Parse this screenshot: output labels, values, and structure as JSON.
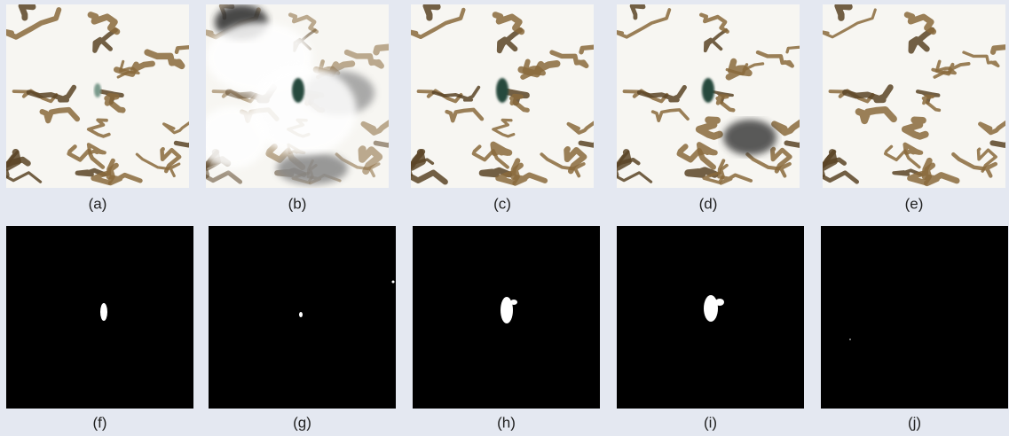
{
  "figure": {
    "panels": [
      {
        "label": "(a)"
      },
      {
        "label": "(b)"
      },
      {
        "label": "(c)"
      },
      {
        "label": "(d)"
      },
      {
        "label": "(e)"
      },
      {
        "label": "(f)"
      },
      {
        "label": "(g)"
      },
      {
        "label": "(h)"
      },
      {
        "label": "(i)"
      },
      {
        "label": "(j)"
      }
    ]
  }
}
